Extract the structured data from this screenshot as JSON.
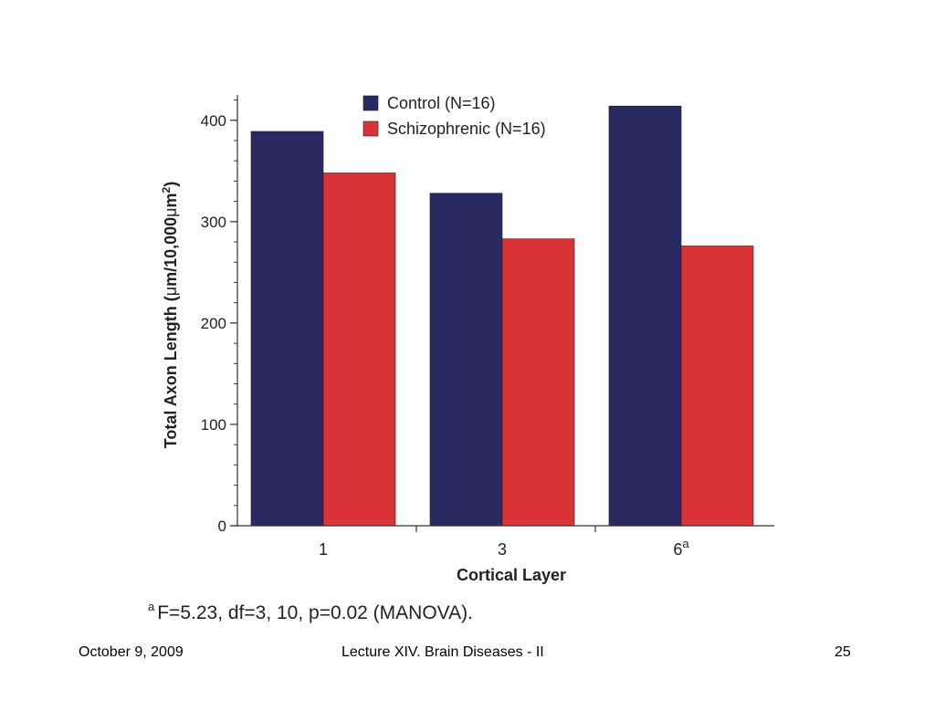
{
  "chart_data": {
    "type": "bar",
    "categories": [
      "1",
      "3",
      "6"
    ],
    "category_superscripts": [
      "",
      "",
      "a"
    ],
    "series": [
      {
        "name": "Control (N=16)",
        "values": [
          389,
          328,
          414
        ],
        "color": "#2a2a62"
      },
      {
        "name": "Schizophrenic (N=16)",
        "values": [
          348,
          283,
          276
        ],
        "color": "#d93237"
      }
    ],
    "xlabel": "Cortical Layer",
    "ylabel": "Total Axon Length (μm/10,000μm²)",
    "ylabel_prefix": "Total Axon Length (",
    "ylabel_unit_mu": "μ",
    "ylabel_unit_rest": "m/10,000",
    "ylabel_unit_sq": "m",
    "ylabel_suffix": ")",
    "ylim": [
      0,
      425
    ],
    "yticks": [
      0,
      100,
      200,
      300,
      400
    ],
    "legend_position": "top-center",
    "grid": false
  },
  "footnote": {
    "marker": "a",
    "text": "F=5.23, df=3, 10, p=0.02 (MANOVA)."
  },
  "footer": {
    "date": "October 9, 2009",
    "title": "Lecture XIV. Brain Diseases - II",
    "page": "25"
  }
}
